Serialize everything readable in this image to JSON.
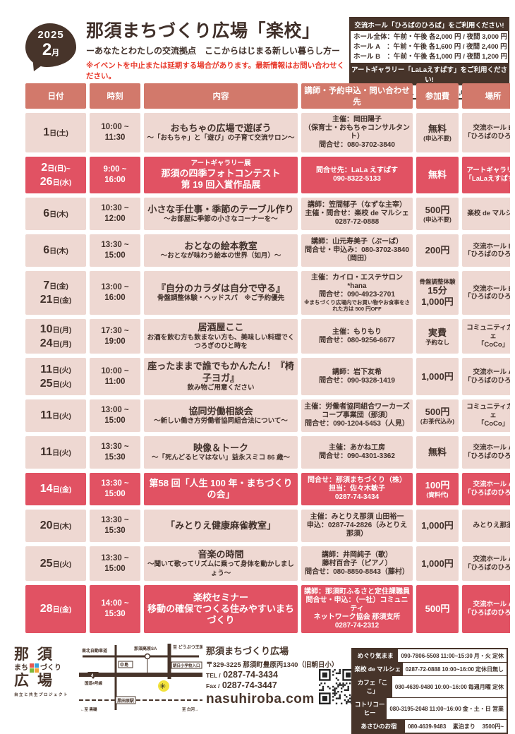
{
  "header": {
    "year": "2025",
    "month_num": "2",
    "month_suffix": "月",
    "title": "那須まちづくり広場「楽校」",
    "subtitle": "ーあなたとわたしの交流拠点　ここからはじまる新しい暮らし方ー",
    "notice": "※イベントを中止または延期する場合があります。最新情報はお問い合わせください。"
  },
  "price_box": {
    "hall_header": "交流ホール「ひろばのひろば」をご利用ください!",
    "hall_rows": [
      "ホール全体：午前・午後 各2,000 円 / 夜間 3,000 円",
      "ホール A　：午前・午後 各1,600 円 / 夜間 2,400 円",
      "ホール B　：午前・午後 各1,000 円 / 夜間 1,200 円"
    ],
    "gallery_header": "アートギャラリー「LaLaえすぱす」をご利用ください!",
    "gallery_row": "期間により、3,000 円〜 11,000 円"
  },
  "table": {
    "columns": [
      "日付",
      "時刻",
      "内容",
      "講師・予約申込・問い合わせ先",
      "参加費",
      "場所"
    ],
    "rows": [
      {
        "highlight": false,
        "dates": [
          {
            "num": "1",
            "rest": "日(土)"
          }
        ],
        "time": [
          "10:00 ~",
          "11:30"
        ],
        "content": {
          "pre": "",
          "title": "おもちゃの広場で遊ぼう",
          "title2": "",
          "sub": "～「おもちゃ」と「遊び」の子育て交流サロン～"
        },
        "contact": [
          "主催：岡田陽子",
          "（保育士・おもちゃコンサルタント）",
          "問合せ：080-3702-3840"
        ],
        "contact_note": "",
        "fee": {
          "pre": "",
          "main": "無料",
          "sub": "(申込不要)"
        },
        "place": [
          "交流ホール B",
          "「ひろばのひろば」"
        ]
      },
      {
        "highlight": true,
        "dates": [
          {
            "num": "2",
            "rest": "日(日)~"
          },
          {
            "num": "26",
            "rest": "日(水)"
          }
        ],
        "time": [
          "9:00 ~",
          "16:00"
        ],
        "content": {
          "pre": "アートギャラリー展",
          "title": "那須の四季フォトコンテスト",
          "title2": "第 19 回入賞作品展",
          "sub": ""
        },
        "contact": [
          "問合せ先：LaLa えすぱす",
          "090-8322-5133"
        ],
        "contact_note": "",
        "fee": {
          "pre": "",
          "main": "無料",
          "sub": ""
        },
        "place": [
          "アートギャラリー",
          "「LaLaえすぱす」"
        ]
      },
      {
        "highlight": false,
        "dates": [
          {
            "num": "6",
            "rest": "日(木)"
          }
        ],
        "time": [
          "10:30 ~",
          "12:00"
        ],
        "content": {
          "pre": "",
          "title": "小さな手仕事・季節のテーブル作り",
          "title2": "",
          "sub": "～お部屋に季節の小さなコーナーを～"
        },
        "contact": [
          "講師：笠間郁子（なずな主宰）",
          "主催・問合せ：楽校 de マルシェ",
          "0287-72-0888"
        ],
        "contact_note": "",
        "fee": {
          "pre": "",
          "main": "500円",
          "sub": "(申込不要)"
        },
        "place": [
          "楽校 de マルシェ"
        ]
      },
      {
        "highlight": false,
        "dates": [
          {
            "num": "6",
            "rest": "日(木)"
          }
        ],
        "time": [
          "13:30 ~",
          "15:00"
        ],
        "content": {
          "pre": "",
          "title": "おとなの絵本教室",
          "title2": "",
          "sub": "～おとなが味わう絵本の世界（如月）～"
        },
        "contact": [
          "講師：山元寿美子（ぷーば）",
          "問合せ・申込み：080-3702-3840（岡田）"
        ],
        "contact_note": "",
        "fee": {
          "pre": "",
          "main": "200円",
          "sub": ""
        },
        "place": [
          "交流ホール B",
          "「ひろばのひろば」"
        ]
      },
      {
        "highlight": false,
        "dates": [
          {
            "num": "7",
            "rest": "日(金)"
          },
          {
            "num": "21",
            "rest": "日(金)"
          }
        ],
        "time": [
          "13:00 ~",
          "16:00"
        ],
        "content": {
          "pre": "",
          "title": "『自分のカラダは自分で守る』",
          "title2": "",
          "sub": "骨盤調整体験・ヘッドスパ　※ご予約優先"
        },
        "contact": [
          "主催：カイロ・エステサロン*hana",
          "問合せ：090-4923-2701"
        ],
        "contact_note": "※まちづくり広場内でお買い物やお食事をされた方は 500 円OFF",
        "fee": {
          "pre": "骨盤調整体験",
          "main": "15分1,000円",
          "sub": ""
        },
        "place": [
          "交流ホール B",
          "「ひろばのひろば」"
        ]
      },
      {
        "highlight": false,
        "dates": [
          {
            "num": "10",
            "rest": "日(月)"
          },
          {
            "num": "24",
            "rest": "日(月)"
          }
        ],
        "time": [
          "17:30 ~",
          "19:00"
        ],
        "content": {
          "pre": "",
          "title": "居酒屋ここ",
          "title2": "",
          "sub": "お酒を飲む方も飲まない方も、美味しい料理でくつろぎのひと時を"
        },
        "contact": [
          "主催：もりもり",
          "問合せ：080-9256-6677"
        ],
        "contact_note": "",
        "fee": {
          "pre": "",
          "main": "実費",
          "sub": "予約なし"
        },
        "place": [
          "コミュニティカフェ",
          "「CoCo」"
        ]
      },
      {
        "highlight": false,
        "dates": [
          {
            "num": "11",
            "rest": "日(火)"
          },
          {
            "num": "25",
            "rest": "日(火)"
          }
        ],
        "time": [
          "10:00 ~",
          "11:00"
        ],
        "content": {
          "pre": "",
          "title": "座ったままで誰でもかんたん！『椅子ヨガ』",
          "title2": "",
          "sub": "飲み物ご用意ください"
        },
        "contact": [
          "講師：岩下友希",
          "問合せ：090-9328-1419"
        ],
        "contact_note": "",
        "fee": {
          "pre": "",
          "main": "1,000円",
          "sub": ""
        },
        "place": [
          "交流ホール A",
          "「ひろばのひろば」"
        ]
      },
      {
        "highlight": false,
        "dates": [
          {
            "num": "11",
            "rest": "日(火)"
          }
        ],
        "time": [
          "13:00 ~",
          "15:00"
        ],
        "content": {
          "pre": "",
          "title": "協同労働相談会",
          "title2": "",
          "sub": "～新しい働き方労働者協同組合法について～"
        },
        "contact": [
          "主催：労働者協同組合ワーカーズ",
          "コープ事業団（那須）",
          "問合せ：090-1204-5453（人見）"
        ],
        "contact_note": "",
        "fee": {
          "pre": "",
          "main": "500円",
          "sub": "(お茶代込み)"
        },
        "place": [
          "コミュニティカフェ",
          "「CoCo」"
        ]
      },
      {
        "highlight": false,
        "dates": [
          {
            "num": "11",
            "rest": "日(火)"
          }
        ],
        "time": [
          "13:30 ~",
          "15:30"
        ],
        "content": {
          "pre": "",
          "title": "映像＆トーク",
          "title2": "",
          "sub": "～「死んどるヒマはない」益永スミコ 86 歳～"
        },
        "contact": [
          "主催：あかね工房",
          "問合せ：090-4301-3362"
        ],
        "contact_note": "",
        "fee": {
          "pre": "",
          "main": "無料",
          "sub": ""
        },
        "place": [
          "交流ホール A",
          "「ひろばのひろば」"
        ]
      },
      {
        "highlight": true,
        "dates": [
          {
            "num": "14",
            "rest": "日(金)"
          }
        ],
        "time": [
          "13:30 ~",
          "15:00"
        ],
        "content": {
          "pre": "",
          "title": "第58 回「人生 100 年・まちづくりの会」",
          "title2": "",
          "sub": ""
        },
        "contact": [
          "問合せ：那須まちづくり（株）",
          "担当：佐々木敏子",
          "0287-74-3434"
        ],
        "contact_note": "",
        "fee": {
          "pre": "",
          "main": "100円",
          "sub": "(資料代)"
        },
        "place": [
          "交流ホール A",
          "「ひろばのひろば」"
        ]
      },
      {
        "highlight": false,
        "dates": [
          {
            "num": "20",
            "rest": "日(木)"
          }
        ],
        "time": [
          "13:30 ~",
          "15:30"
        ],
        "content": {
          "pre": "",
          "title": "「みとりえ健康麻雀教室」",
          "title2": "",
          "sub": ""
        },
        "contact": [
          "主催：みとりえ那須 山田裕一",
          "申込：0287-74-2826（みとりえ那須）"
        ],
        "contact_note": "",
        "fee": {
          "pre": "",
          "main": "1,000円",
          "sub": ""
        },
        "place": [
          "みとりえ那須"
        ]
      },
      {
        "highlight": false,
        "dates": [
          {
            "num": "25",
            "rest": "日(火)"
          }
        ],
        "time": [
          "13:30 ~",
          "15:00"
        ],
        "content": {
          "pre": "",
          "title": "音楽の時間",
          "title2": "",
          "sub": "～聞いて歌ってリズムに乗って身体を動かしましょう～"
        },
        "contact": [
          "講師：井岡純子（歌）",
          "藤村百合子（ピアノ）",
          "問合せ：080-8850-8843（藤村）"
        ],
        "contact_note": "",
        "fee": {
          "pre": "",
          "main": "1,000円",
          "sub": ""
        },
        "place": [
          "交流ホール A",
          "「ひろばのひろば」"
        ]
      },
      {
        "highlight": true,
        "dates": [
          {
            "num": "28",
            "rest": "日(金)"
          }
        ],
        "time": [
          "14:00 ~",
          "15:30"
        ],
        "content": {
          "pre": "",
          "title": "楽校セミナー",
          "title2": "移動の確保でつくる住みやすいまちづくり",
          "sub": ""
        },
        "contact": [
          "講師：那須町ふるさと定住課職員",
          "問合せ・申込：（一社）コミュニティ",
          "ネットワーク協会 那須支所",
          "0287-74-2312"
        ],
        "contact_note": "",
        "fee": {
          "pre": "",
          "main": "500円",
          "sub": ""
        },
        "place": [
          "交流ホール A",
          "「ひろばのひろば」"
        ]
      }
    ]
  },
  "footer": {
    "logo": {
      "line1": "那須",
      "line2a": "まち",
      "line2b": "づくり",
      "line3": "広場",
      "tagline": "自立と共生プロジェクト"
    },
    "map": {
      "expressway": "東北自動車道",
      "sa": "那須高原SA",
      "zoo": "至 どうぶつ王国",
      "nakajima": "中島",
      "school": "朝日小学校入口",
      "badge": "4",
      "route4": "国道4号線",
      "station": "黒田原駅",
      "to_left": "←至 黒磯",
      "to_right": "至 白河→"
    },
    "facility": {
      "name": "那須まちづくり広場",
      "address": "〒329-3225 那須町豊原丙1340（旧朝日小）",
      "tel_label": "TEL /",
      "tel": "0287-74-3434",
      "fax_label": "Fax /",
      "fax": "0287-74-3447",
      "url": "nasuhiroba.com"
    },
    "directory": [
      {
        "name": "めぐり気まま",
        "phone": "090-7806-5508",
        "hours": "11:00~15:30",
        "note": "月・火 定休"
      },
      {
        "name": "楽校 de マルシェ",
        "phone": "0287-72-0888",
        "hours": "10:00~16:00",
        "note": "定休日無し"
      },
      {
        "name": "カフェ「ここ」",
        "phone": "080-4639-9480",
        "hours": "10:00~16:00",
        "note": "毎週月曜 定休"
      },
      {
        "name": "コトリコーヒー",
        "phone": "080-3195-2048",
        "hours": "11:00~16:00",
        "note": "金・土・日 営業"
      },
      {
        "name": "あさひのお宿",
        "phone": "080-4639-9483",
        "hours": "素泊まり",
        "note": "3500円~"
      }
    ],
    "logo_colors": [
      "#e8584f",
      "#3aa0d8",
      "#7fb93c",
      "#f0a63c"
    ],
    "accent_red": "#e15263",
    "accent_brown": "#47342a",
    "accent_salmon": "#d2796b"
  }
}
